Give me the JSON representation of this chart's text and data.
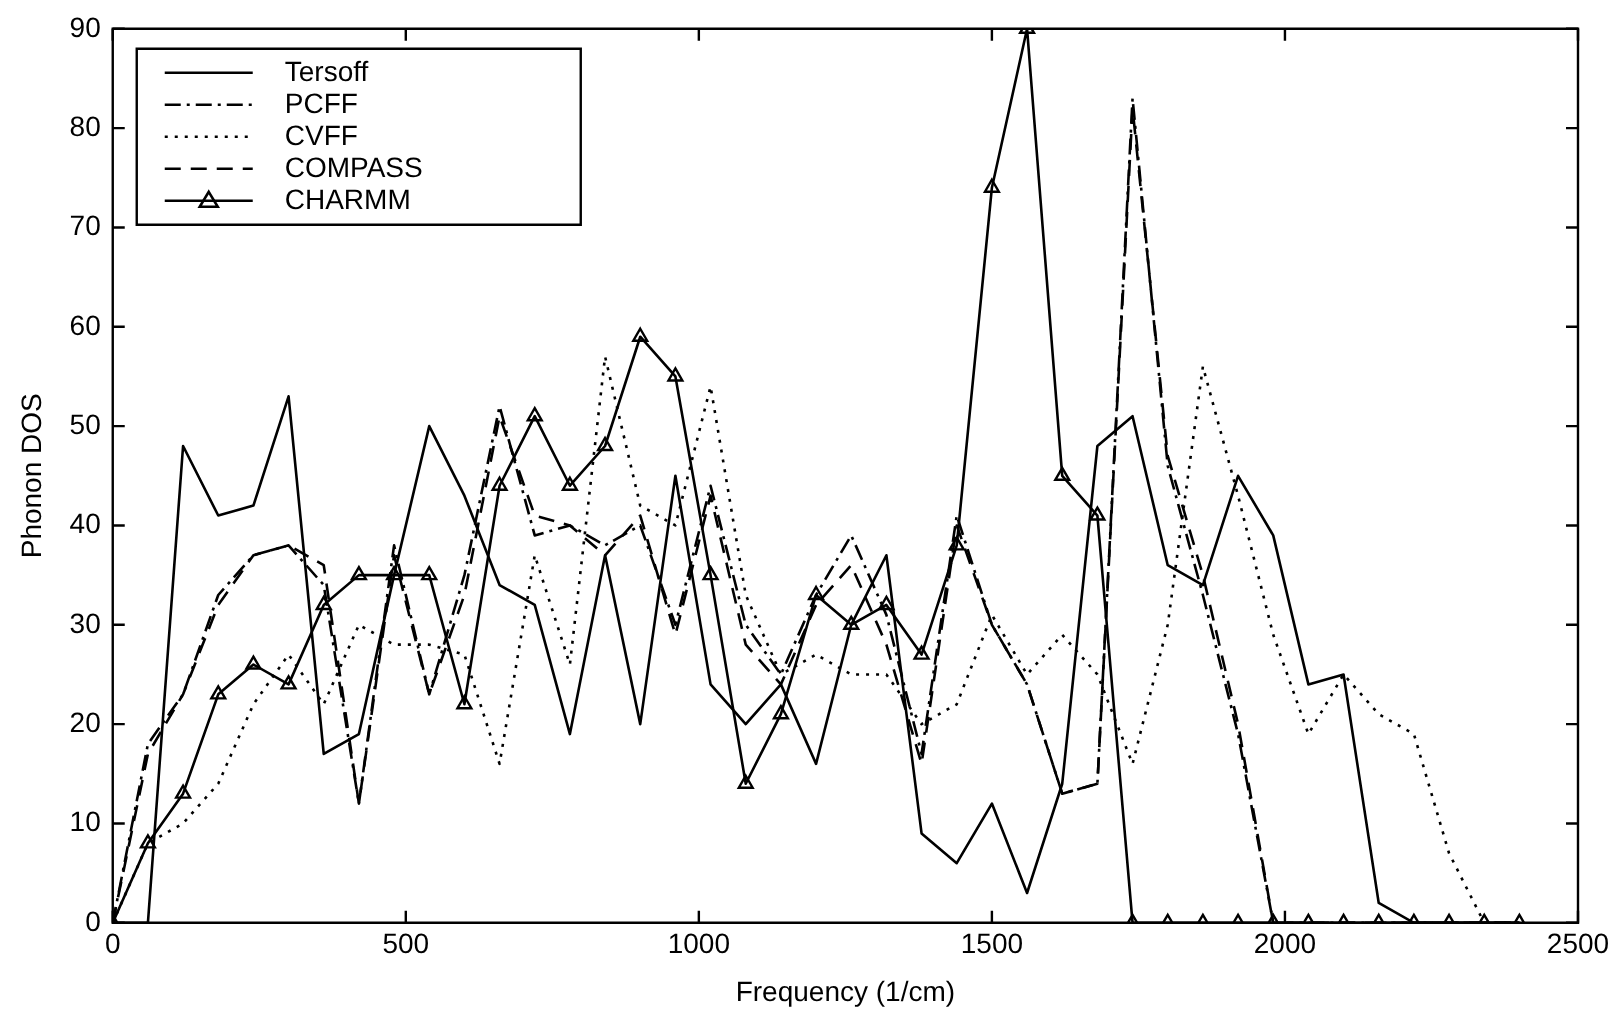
{
  "chart_data": {
    "type": "line",
    "xlabel": "Frequency (1/cm)",
    "ylabel": "Phonon DOS",
    "x": [
      0,
      60,
      120,
      180,
      240,
      300,
      360,
      420,
      480,
      540,
      600,
      660,
      720,
      780,
      840,
      900,
      960,
      1020,
      1080,
      1140,
      1200,
      1260,
      1320,
      1380,
      1440,
      1500,
      1560,
      1620,
      1680,
      1740,
      1800,
      1860,
      1920,
      1980,
      2040,
      2100,
      2160,
      2220,
      2280,
      2340,
      2400
    ],
    "xlim": [
      0,
      2500
    ],
    "xticks": [
      0,
      500,
      1000,
      1500,
      2000,
      2500
    ],
    "ylim": [
      0,
      90
    ],
    "yticks": [
      0,
      10,
      20,
      30,
      40,
      50,
      60,
      70,
      80,
      90
    ],
    "grid": false,
    "legend": "top left",
    "series": [
      {
        "name": "Tersoff",
        "color": "#000000",
        "line_style": "solid",
        "marker": "none",
        "values": [
          0,
          0,
          48,
          41,
          42,
          53,
          17,
          19,
          35,
          50,
          43,
          34,
          32,
          19,
          37,
          20,
          45,
          24,
          20,
          24,
          16,
          30,
          37,
          9,
          6,
          12,
          3,
          14,
          48,
          51,
          36,
          34,
          45,
          39,
          24,
          25,
          2,
          0,
          0,
          0,
          0
        ]
      },
      {
        "name": "PCFF",
        "color": "#000000",
        "line_style": "dashdot",
        "marker": "none",
        "values": [
          0,
          18,
          23,
          33,
          37,
          38,
          34,
          12,
          38,
          23,
          35,
          52,
          39,
          40,
          38,
          40,
          30,
          44,
          30,
          25,
          33,
          39,
          31,
          17,
          41,
          30,
          24,
          13,
          14,
          83,
          46,
          33,
          19,
          0,
          0,
          0,
          0,
          0,
          0,
          0,
          0
        ]
      },
      {
        "name": "CVFF",
        "color": "#000000",
        "line_style": "dotted",
        "marker": "none",
        "values": [
          0,
          8,
          10,
          14,
          22,
          27,
          22,
          30,
          28,
          28,
          27,
          16,
          37,
          26,
          57,
          42,
          40,
          54,
          33,
          25,
          27,
          25,
          25,
          20,
          22,
          31,
          25,
          29,
          25,
          16,
          30,
          56,
          43,
          29,
          19,
          25,
          21,
          19,
          7,
          0,
          0
        ]
      },
      {
        "name": "COMPASS",
        "color": "#000000",
        "line_style": "dashed",
        "marker": "none",
        "values": [
          0,
          17,
          23,
          32,
          37,
          38,
          36,
          12,
          37,
          23,
          33,
          51,
          41,
          40,
          37,
          41,
          29,
          43,
          28,
          24,
          32,
          36,
          28,
          16,
          40,
          30,
          24,
          13,
          14,
          82,
          47,
          35,
          20,
          0,
          0,
          0,
          0,
          0,
          0,
          0,
          0
        ]
      },
      {
        "name": "CHARMM",
        "color": "#000000",
        "line_style": "solid",
        "marker": "triangle",
        "values": [
          0,
          8,
          13,
          23,
          26,
          24,
          32,
          35,
          35,
          35,
          22,
          44,
          51,
          44,
          48,
          59,
          55,
          35,
          14,
          21,
          33,
          30,
          32,
          27,
          38,
          74,
          90,
          45,
          41,
          0,
          0,
          0,
          0,
          0,
          0,
          0,
          0,
          0,
          0,
          0,
          0
        ]
      }
    ]
  }
}
